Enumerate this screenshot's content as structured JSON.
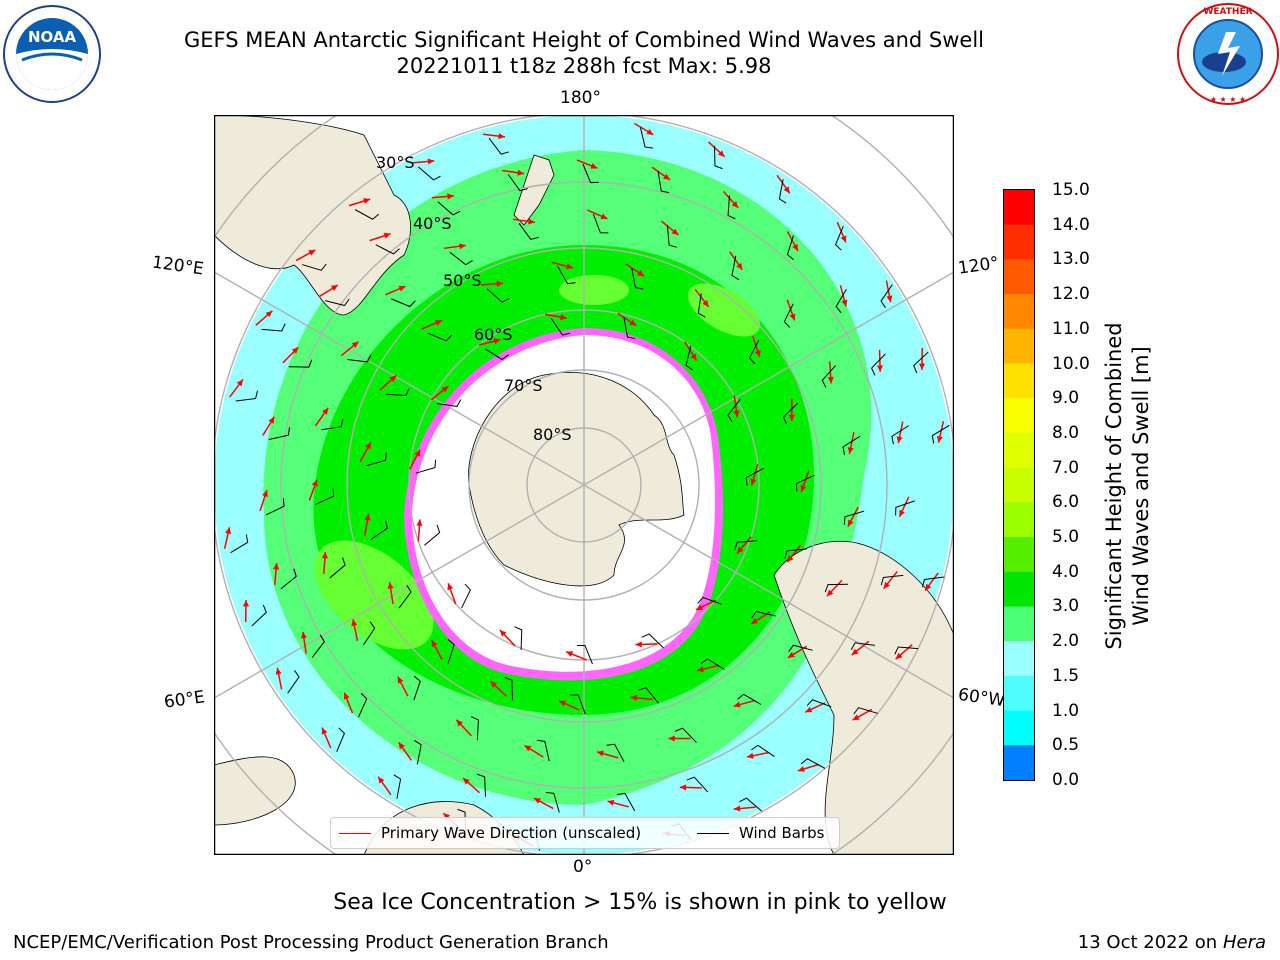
{
  "title": {
    "line1": "GEFS MEAN Antarctic Significant Height of Combined Wind Waves and Swell",
    "line2": "20221011 t18z 288h fcst   Max: 5.98"
  },
  "logos": {
    "left": {
      "text": "NOAA",
      "ring_text": "NATIONAL OCEANIC AND ATMOSPHERIC ADMINISTRATION · U.S. DEPARTMENT OF COMMERCE"
    },
    "right": {
      "ring_text": "NATIONAL WEATHER SERVICE"
    }
  },
  "map": {
    "lon_labels": {
      "top": "180°",
      "bottom": "0°",
      "left_upper": "120°E",
      "left_lower": "60°E",
      "right_upper": "120°",
      "right_lower": "60°W"
    },
    "lat_labels": [
      "30°S",
      "40°S",
      "50°S",
      "60°S",
      "70°S",
      "80°S"
    ],
    "legend": {
      "wave": "Primary Wave Direction (unscaled)",
      "barb": "Wind Barbs"
    },
    "colors": {
      "land": "#efebdb",
      "ocean_low": "#9cffff",
      "ocean_mid": "#55ff77",
      "ocean_high": "#00ee00",
      "peak": "#66ff33",
      "ice_edge": "#ff33ff",
      "arrow": "#ff0000"
    }
  },
  "colorbar": {
    "title_line1": "Significant Height of Combined",
    "title_line2": "Wind Waves and Swell [m]",
    "ticks": [
      "15.0",
      "14.0",
      "13.0",
      "12.0",
      "11.0",
      "10.0",
      "9.0",
      "8.0",
      "7.0",
      "6.0",
      "5.0",
      "4.0",
      "3.0",
      "2.0",
      "1.5",
      "1.0",
      "0.5",
      "0.0"
    ],
    "colors": [
      "#ff0000",
      "#ff2d00",
      "#ff5a00",
      "#ff8700",
      "#ffb400",
      "#ffe100",
      "#f8ff00",
      "#e0ff00",
      "#c8ff00",
      "#9bff00",
      "#55ee00",
      "#00e600",
      "#4dff77",
      "#9cffff",
      "#4ffdfd",
      "#00ffff",
      "#0080ff",
      "#0000ff"
    ]
  },
  "note": "Sea Ice Concentration > 15% is shown in pink to yellow",
  "footer": {
    "left": "NCEP/EMC/Verification Post Processing Product Generation Branch",
    "right_date": "13 Oct 2022 on ",
    "right_machine": "Hera"
  }
}
